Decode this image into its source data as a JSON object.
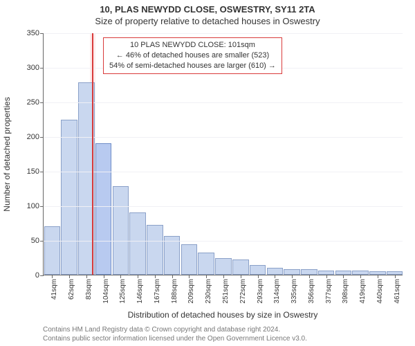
{
  "title": "10, PLAS NEWYDD CLOSE, OSWESTRY, SY11 2TA",
  "subtitle": "Size of property relative to detached houses in Oswestry",
  "ylabel": "Number of detached properties",
  "xlabel": "Distribution of detached houses by size in Oswestry",
  "chart": {
    "type": "histogram",
    "ylim_max": 350,
    "yticks": [
      0,
      50,
      100,
      150,
      200,
      250,
      300,
      350
    ],
    "grid_color": "#f0f0f5",
    "bar_fill": "#c9d7ef",
    "bar_stroke": "#8aa0c8",
    "highlight_fill": "#b8caf0",
    "highlight_stroke": "#6e8dc7",
    "categories": [
      "41sqm",
      "62sqm",
      "83sqm",
      "104sqm",
      "125sqm",
      "146sqm",
      "167sqm",
      "188sqm",
      "209sqm",
      "230sqm",
      "251sqm",
      "272sqm",
      "293sqm",
      "314sqm",
      "335sqm",
      "356sqm",
      "377sqm",
      "398sqm",
      "419sqm",
      "440sqm",
      "461sqm"
    ],
    "values": [
      70,
      224,
      278,
      190,
      128,
      90,
      72,
      56,
      44,
      32,
      24,
      22,
      14,
      10,
      8,
      8,
      6,
      6,
      6,
      5,
      5
    ],
    "highlight_index": 3
  },
  "marker": {
    "band_color": "#fdecec",
    "line_color": "#d93a3a",
    "box_border": "#d93a3a",
    "lines": [
      "10 PLAS NEWYDD CLOSE: 101sqm",
      "← 46% of detached houses are smaller (523)",
      "54% of semi-detached houses are larger (610) →"
    ]
  },
  "attribution": {
    "l1": "Contains HM Land Registry data © Crown copyright and database right 2024.",
    "l2": "Contains public sector information licensed under the Open Government Licence v3.0."
  },
  "fonts": {
    "title_size": 13,
    "label_size": 12,
    "tick_size": 11,
    "xtick_size": 10,
    "annotation_size": 11,
    "attribution_size": 10
  }
}
